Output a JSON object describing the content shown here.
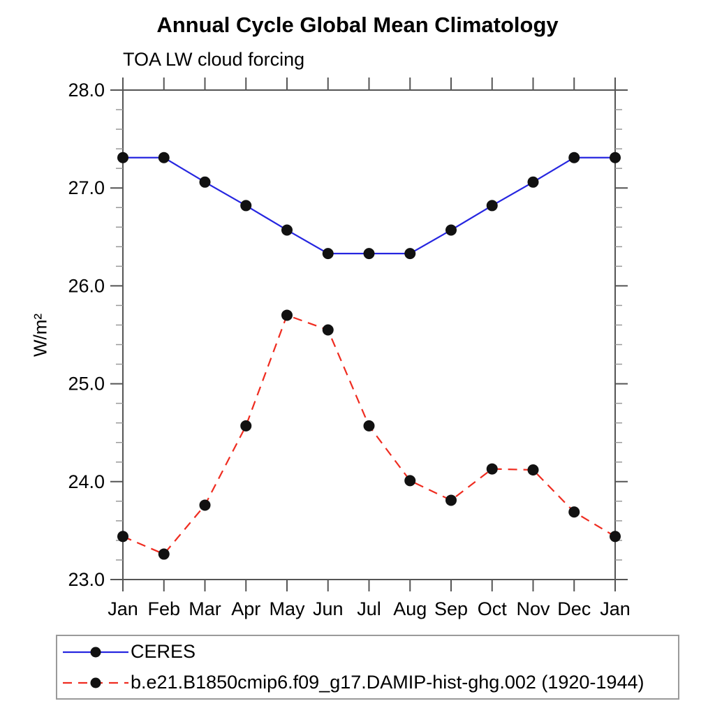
{
  "chart_data": {
    "type": "line",
    "title": "Annual Cycle Global Mean Climatology",
    "subtitle": "TOA LW cloud forcing",
    "xlabel": "",
    "ylabel": "W/m²",
    "ylim": [
      23.0,
      28.0
    ],
    "y_major_tick_step": 1.0,
    "y_minor_tick_step": 0.2,
    "y_tick_labels": [
      "23.0",
      "24.0",
      "25.0",
      "26.0",
      "27.0",
      "28.0"
    ],
    "x_tick_labels": [
      "Jan",
      "Feb",
      "Mar",
      "Apr",
      "May",
      "Jun",
      "Jul",
      "Aug",
      "Sep",
      "Oct",
      "Nov",
      "Dec",
      "Jan"
    ],
    "grid": false,
    "legend_position": "bottom",
    "marker_color": "#111111",
    "axis_color": "#555555",
    "minor_tick_color": "#999999",
    "series": [
      {
        "name": "CERES",
        "line_style": "solid",
        "color": "#2626e0",
        "values": [
          27.31,
          27.31,
          27.06,
          26.82,
          26.57,
          26.33,
          26.33,
          26.33,
          26.57,
          26.82,
          27.06,
          27.31,
          27.31
        ]
      },
      {
        "name": "b.e21.B1850cmip6.f09_g17.DAMIP-hist-ghg.002 (1920-1944)",
        "line_style": "dashed",
        "color": "#ef2c20",
        "values": [
          23.44,
          23.26,
          23.76,
          24.57,
          25.7,
          25.55,
          24.57,
          24.01,
          23.81,
          24.13,
          24.12,
          23.69,
          23.44
        ]
      }
    ]
  }
}
